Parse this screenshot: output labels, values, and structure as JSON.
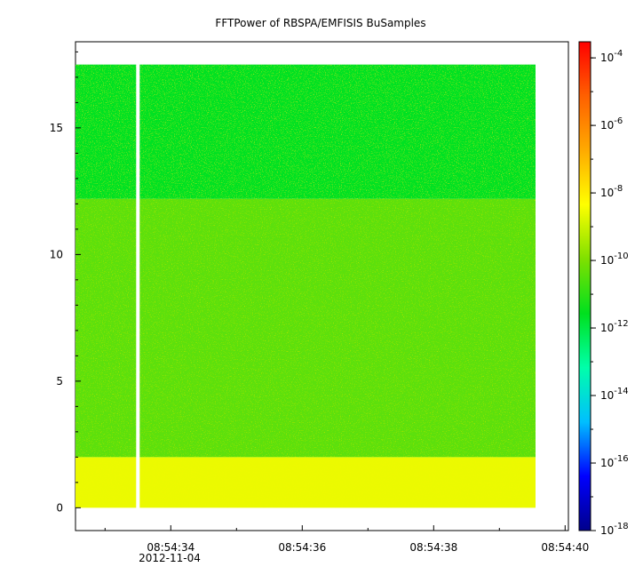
{
  "chart_data": {
    "type": "heatmap",
    "title": "FFTPower of RBSPA/EMFISIS  BuSamples",
    "xlabel": "",
    "ylabel": "",
    "date_label": "2012-11-04",
    "x_ticks": [
      "08:54:34",
      "08:54:36",
      "08:54:38",
      "08:54:40"
    ],
    "y_ticks": [
      "0",
      "5",
      "10",
      "15"
    ],
    "xlim": [
      "08:54:32.55",
      "08:54:40.05"
    ],
    "ylim": [
      -0.9,
      18.4
    ],
    "data_extent": {
      "x": [
        "08:54:32.55",
        "08:54:39.55"
      ],
      "y": [
        0,
        17.5
      ]
    },
    "gap_time": "08:54:33.5",
    "bands": [
      {
        "y_range": [
          0,
          2.0
        ],
        "log10_power": -8.6
      },
      {
        "y_range": [
          2.0,
          12.2
        ],
        "log10_power": -10.4
      },
      {
        "y_range": [
          12.2,
          17.5
        ],
        "log10_power": -11.6
      }
    ],
    "colorbar": {
      "scale": "log",
      "range": [
        1e-18,
        0.0003
      ],
      "colors": [
        "#00008b",
        "#0000ff",
        "#00bfff",
        "#00ffaa",
        "#00e01e",
        "#7fe000",
        "#ffff00",
        "#ffaa00",
        "#ff6000",
        "#ff0000"
      ],
      "ticks": [
        {
          "base": "10",
          "exp": "-4"
        },
        {
          "base": "10",
          "exp": "-6"
        },
        {
          "base": "10",
          "exp": "-8"
        },
        {
          "base": "10",
          "exp": "-10"
        },
        {
          "base": "10",
          "exp": "-12"
        },
        {
          "base": "10",
          "exp": "-14"
        },
        {
          "base": "10",
          "exp": "-16"
        },
        {
          "base": "10",
          "exp": "-18"
        }
      ]
    }
  }
}
